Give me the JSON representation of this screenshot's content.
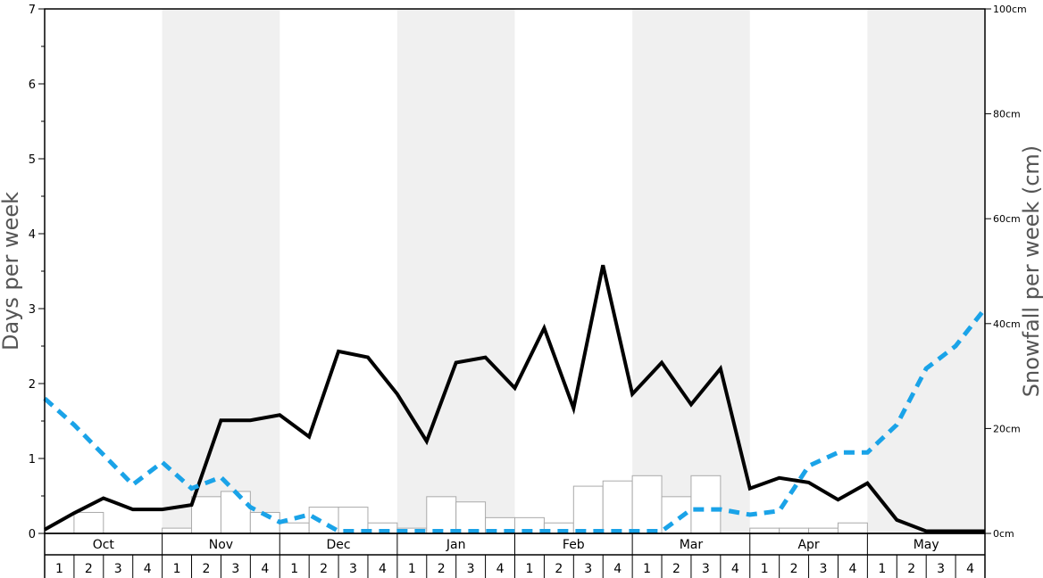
{
  "chart_data": {
    "type": "line",
    "title": "",
    "xlabel": "",
    "ylabel_left": "Days per week",
    "ylabel_right": "Snowfall per week (cm)",
    "ylim_left": [
      0,
      7
    ],
    "ylim_right": [
      0,
      100
    ],
    "left_ticks": [
      "0",
      "1",
      "2",
      "3",
      "4",
      "5",
      "6",
      "7"
    ],
    "right_ticks": [
      "0cm",
      "20cm",
      "40cm",
      "60cm",
      "80cm",
      "100cm"
    ],
    "months": [
      "Oct",
      "Nov",
      "Dec",
      "Jan",
      "Feb",
      "Mar",
      "Apr",
      "May"
    ],
    "week_labels": [
      "1",
      "2",
      "3",
      "4"
    ],
    "colors": {
      "snow_days_line": "#000000",
      "dashed_line": "#1aa3e8",
      "bar_stroke": "#aaaaaa",
      "band_shade": "#f0f0f0"
    },
    "snowfall_cm": [
      0,
      4,
      0,
      0,
      1,
      7,
      8,
      4,
      2,
      5,
      5,
      2,
      1,
      7,
      6,
      3,
      3,
      2,
      9,
      10,
      11,
      7,
      11,
      0,
      1,
      1,
      1,
      2,
      0,
      0,
      0,
      0
    ],
    "series": [
      {
        "values": [
          0.05,
          0.27,
          0.47,
          0.32,
          0.32,
          0.38,
          1.51,
          1.51,
          1.58,
          1.29,
          2.43,
          2.35,
          1.86,
          1.23,
          2.28,
          2.35,
          1.94,
          2.74,
          1.67,
          3.58,
          1.86,
          2.28,
          1.72,
          2.2,
          0.6,
          0.74,
          0.68,
          0.45,
          0.67,
          0.18,
          0.03,
          0.03
        ]
      },
      {
        "values": [
          1.8,
          1.45,
          1.05,
          0.65,
          0.95,
          0.6,
          0.75,
          0.35,
          0.15,
          0.25,
          0.03,
          0.03,
          0.03,
          0.03,
          0.03,
          0.03,
          0.03,
          0.03,
          0.03,
          0.03,
          0.03,
          0.03,
          0.32,
          0.32,
          0.25,
          0.3,
          0.9,
          1.08,
          1.08,
          1.45,
          2.2,
          2.5
        ]
      }
    ],
    "dashed_line_end_value": 3.0
  }
}
